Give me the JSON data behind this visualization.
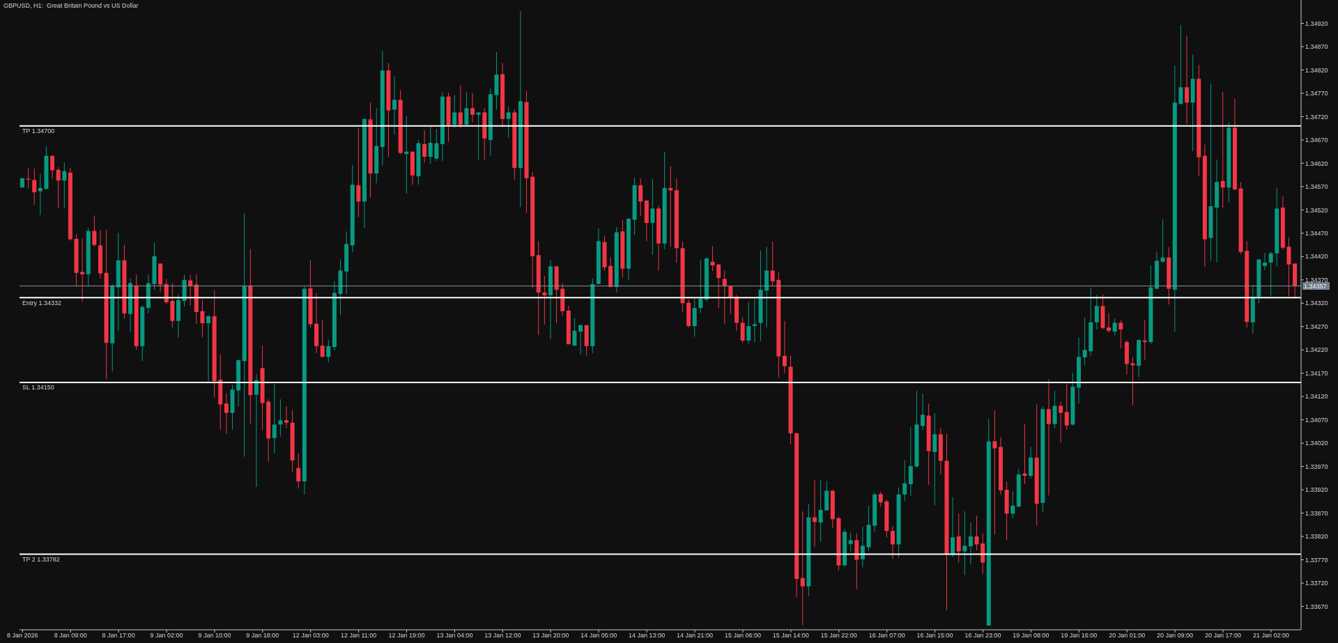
{
  "chart_data": {
    "type": "candlestick",
    "title": "GBPUSD, H1:  Great Britain Pound vs US Dollar",
    "categories": [
      "8 Jan 2026",
      null,
      null,
      null,
      null,
      null,
      null,
      null,
      "8 Jan 09:00",
      null,
      null,
      null,
      null,
      null,
      null,
      null,
      "8 Jan 17:00",
      null,
      null,
      null,
      null,
      null,
      null,
      null,
      "9 Jan 02:00",
      null,
      null,
      null,
      null,
      null,
      null,
      null,
      "9 Jan 10:00",
      null,
      null,
      null,
      null,
      null,
      null,
      null,
      "9 Jan 18:00",
      null,
      null,
      null,
      null,
      null,
      null,
      null,
      "12 Jan 03:00",
      null,
      null,
      null,
      null,
      null,
      null,
      null,
      "12 Jan 11:00",
      null,
      null,
      null,
      null,
      null,
      null,
      null,
      "12 Jan 19:00",
      null,
      null,
      null,
      null,
      null,
      null,
      null,
      "13 Jan 04:00",
      null,
      null,
      null,
      null,
      null,
      null,
      null,
      "13 Jan 12:00",
      null,
      null,
      null,
      null,
      null,
      null,
      null,
      "13 Jan 20:00",
      null,
      null,
      null,
      null,
      null,
      null,
      null,
      "14 Jan 05:00",
      null,
      null,
      null,
      null,
      null,
      null,
      null,
      "14 Jan 13:00",
      null,
      null,
      null,
      null,
      null,
      null,
      null,
      "14 Jan 21:00",
      null,
      null,
      null,
      null,
      null,
      null,
      null,
      "15 Jan 06:00",
      null,
      null,
      null,
      null,
      null,
      null,
      null,
      "15 Jan 14:00",
      null,
      null,
      null,
      null,
      null,
      null,
      null,
      "15 Jan 22:00",
      null,
      null,
      null,
      null,
      null,
      null,
      null,
      "16 Jan 07:00",
      null,
      null,
      null,
      null,
      null,
      null,
      null,
      "16 Jan 15:00",
      null,
      null,
      null,
      null,
      null,
      null,
      null,
      "16 Jan 23:00",
      null,
      null,
      null,
      null,
      null,
      null,
      null,
      "19 Jan 08:00",
      null,
      null,
      null,
      null,
      null,
      null,
      null,
      "19 Jan 16:00",
      null,
      null,
      null,
      null,
      null,
      null,
      null,
      "20 Jan 01:00",
      null,
      null,
      null,
      null,
      null,
      null,
      null,
      "20 Jan 09:00",
      null,
      null,
      null,
      null,
      null,
      null,
      null,
      "20 Jan 17:00",
      null,
      null,
      null,
      null,
      null,
      null,
      null,
      "21 Jan 02:00",
      null,
      null,
      null,
      null
    ],
    "ohlc": [
      [
        1.34568,
        1.34588,
        1.34568,
        1.34588
      ],
      [
        1.34587,
        1.34609,
        1.34566,
        1.34585
      ],
      [
        1.34584,
        1.34609,
        1.34531,
        1.34558
      ],
      [
        1.3456,
        1.34597,
        1.34509,
        1.34567
      ],
      [
        1.34565,
        1.34657,
        1.34564,
        1.34636
      ],
      [
        1.34636,
        1.34637,
        1.34587,
        1.34605
      ],
      [
        1.34606,
        1.34612,
        1.34524,
        1.34583
      ],
      [
        1.34583,
        1.34622,
        1.34524,
        1.34603
      ],
      [
        1.346,
        1.3461,
        1.34454,
        1.34457
      ],
      [
        1.34458,
        1.34468,
        1.34356,
        1.34385
      ],
      [
        1.34387,
        1.34459,
        1.34323,
        1.34382
      ],
      [
        1.34382,
        1.34481,
        1.34356,
        1.34475
      ],
      [
        1.34475,
        1.34508,
        1.34441,
        1.34445
      ],
      [
        1.34444,
        1.34477,
        1.34373,
        1.34384
      ],
      [
        1.34385,
        1.34477,
        1.34157,
        1.34235
      ],
      [
        1.34234,
        1.34361,
        1.34174,
        1.34357
      ],
      [
        1.34354,
        1.34471,
        1.34261,
        1.34412
      ],
      [
        1.34412,
        1.34445,
        1.34286,
        1.34298
      ],
      [
        1.34297,
        1.34373,
        1.34259,
        1.34363
      ],
      [
        1.34358,
        1.34381,
        1.3422,
        1.34228
      ],
      [
        1.34228,
        1.34315,
        1.34196,
        1.34312
      ],
      [
        1.3431,
        1.34381,
        1.34298,
        1.34363
      ],
      [
        1.34361,
        1.3445,
        1.34349,
        1.34421
      ],
      [
        1.34405,
        1.34405,
        1.34345,
        1.3436
      ],
      [
        1.34361,
        1.34372,
        1.34318,
        1.34322
      ],
      [
        1.34325,
        1.34363,
        1.34268,
        1.34282
      ],
      [
        1.34282,
        1.34339,
        1.34246,
        1.34327
      ],
      [
        1.34325,
        1.34381,
        1.34313,
        1.3437
      ],
      [
        1.34369,
        1.34381,
        1.34316,
        1.34357
      ],
      [
        1.3436,
        1.34382,
        1.34276,
        1.34301
      ],
      [
        1.34303,
        1.34327,
        1.34247,
        1.34277
      ],
      [
        1.34277,
        1.34295,
        1.34151,
        1.34292
      ],
      [
        1.34292,
        1.34348,
        1.34118,
        1.34153
      ],
      [
        1.34156,
        1.34211,
        1.34049,
        1.34103
      ],
      [
        1.34105,
        1.34127,
        1.3404,
        1.34085
      ],
      [
        1.34085,
        1.34145,
        1.34049,
        1.34135
      ],
      [
        1.34133,
        1.34198,
        1.34099,
        1.34198
      ],
      [
        1.34196,
        1.34513,
        1.33991,
        1.34356
      ],
      [
        1.34358,
        1.34436,
        1.34061,
        1.34123
      ],
      [
        1.34124,
        1.34168,
        1.33926,
        1.34155
      ],
      [
        1.34181,
        1.34229,
        1.34048,
        1.34106
      ],
      [
        1.34109,
        1.34114,
        1.3398,
        1.3403
      ],
      [
        1.34031,
        1.34147,
        1.33998,
        1.3406
      ],
      [
        1.3406,
        1.34114,
        1.34034,
        1.34069
      ],
      [
        1.34069,
        1.34099,
        1.34052,
        1.34064
      ],
      [
        1.34064,
        1.34091,
        1.33959,
        1.33983
      ],
      [
        1.33967,
        1.33998,
        1.33923,
        1.33938
      ],
      [
        1.33938,
        1.34355,
        1.3391,
        1.34351
      ],
      [
        1.34352,
        1.34412,
        1.34268,
        1.34275
      ],
      [
        1.34276,
        1.34342,
        1.34213,
        1.34228
      ],
      [
        1.34229,
        1.34283,
        1.34204,
        1.34205
      ],
      [
        1.34205,
        1.34241,
        1.34193,
        1.34228
      ],
      [
        1.34226,
        1.34366,
        1.34219,
        1.34342
      ],
      [
        1.3434,
        1.34414,
        1.34295,
        1.3439
      ],
      [
        1.34388,
        1.34474,
        1.3434,
        1.34447
      ],
      [
        1.34444,
        1.34616,
        1.34429,
        1.34574
      ],
      [
        1.34573,
        1.34696,
        1.34505,
        1.34538
      ],
      [
        1.34538,
        1.34715,
        1.34481,
        1.34715
      ],
      [
        1.34714,
        1.3475,
        1.34547,
        1.34598
      ],
      [
        1.34598,
        1.34738,
        1.34577,
        1.34657
      ],
      [
        1.34655,
        1.34861,
        1.34615,
        1.34819
      ],
      [
        1.34819,
        1.34835,
        1.34634,
        1.34733
      ],
      [
        1.34735,
        1.34807,
        1.34682,
        1.34756
      ],
      [
        1.34756,
        1.34777,
        1.34639,
        1.34642
      ],
      [
        1.3464,
        1.34721,
        1.34555,
        1.34645
      ],
      [
        1.34645,
        1.34645,
        1.34574,
        1.34594
      ],
      [
        1.34592,
        1.3467,
        1.34574,
        1.34663
      ],
      [
        1.34661,
        1.34691,
        1.34621,
        1.34634
      ],
      [
        1.34634,
        1.34699,
        1.34619,
        1.34664
      ],
      [
        1.3463,
        1.34693,
        1.34625,
        1.34663
      ],
      [
        1.34661,
        1.34771,
        1.34625,
        1.34763
      ],
      [
        1.34763,
        1.34772,
        1.34666,
        1.34702
      ],
      [
        1.34703,
        1.34766,
        1.34696,
        1.34729
      ],
      [
        1.34729,
        1.34787,
        1.34696,
        1.34703
      ],
      [
        1.34703,
        1.34772,
        1.34702,
        1.34738
      ],
      [
        1.34738,
        1.34771,
        1.34708,
        1.34724
      ],
      [
        1.34724,
        1.34729,
        1.34628,
        1.34729
      ],
      [
        1.34729,
        1.34738,
        1.34627,
        1.34673
      ],
      [
        1.3467,
        1.3478,
        1.34637,
        1.34768
      ],
      [
        1.34766,
        1.34858,
        1.34735,
        1.3481
      ],
      [
        1.34811,
        1.34835,
        1.34697,
        1.34715
      ],
      [
        1.34715,
        1.34741,
        1.34675,
        1.34729
      ],
      [
        1.34729,
        1.34736,
        1.34585,
        1.3461
      ],
      [
        1.3461,
        1.34946,
        1.34526,
        1.34753
      ],
      [
        1.34751,
        1.34775,
        1.34514,
        1.34588
      ],
      [
        1.34591,
        1.34601,
        1.34352,
        1.34421
      ],
      [
        1.34423,
        1.34453,
        1.34252,
        1.34343
      ],
      [
        1.34343,
        1.34379,
        1.34274,
        1.34337
      ],
      [
        1.34337,
        1.34412,
        1.34243,
        1.34399
      ],
      [
        1.34399,
        1.344,
        1.34277,
        1.34349
      ],
      [
        1.34351,
        1.34363,
        1.34294,
        1.34303
      ],
      [
        1.34304,
        1.34315,
        1.34232,
        1.34232
      ],
      [
        1.34229,
        1.34288,
        1.34229,
        1.34261
      ],
      [
        1.34259,
        1.34274,
        1.3421,
        1.34273
      ],
      [
        1.34273,
        1.34273,
        1.34208,
        1.34228
      ],
      [
        1.34228,
        1.34373,
        1.34213,
        1.34361
      ],
      [
        1.34361,
        1.3448,
        1.34361,
        1.34453
      ],
      [
        1.34451,
        1.34465,
        1.3439,
        1.34397
      ],
      [
        1.344,
        1.34418,
        1.34354,
        1.34355
      ],
      [
        1.34355,
        1.34483,
        1.34343,
        1.34472
      ],
      [
        1.34474,
        1.34499,
        1.34375,
        1.34394
      ],
      [
        1.34394,
        1.34502,
        1.3437,
        1.34501
      ],
      [
        1.34499,
        1.34589,
        1.34466,
        1.34573
      ],
      [
        1.34573,
        1.34588,
        1.34507,
        1.34538
      ],
      [
        1.3454,
        1.34541,
        1.34453,
        1.34492
      ],
      [
        1.34492,
        1.34586,
        1.34424,
        1.34523
      ],
      [
        1.34523,
        1.34529,
        1.3439,
        1.34448
      ],
      [
        1.34448,
        1.34645,
        1.34436,
        1.34567
      ],
      [
        1.34567,
        1.34614,
        1.34441,
        1.34562
      ],
      [
        1.34562,
        1.34588,
        1.34407,
        1.34438
      ],
      [
        1.34438,
        1.34452,
        1.34301,
        1.3432
      ],
      [
        1.34321,
        1.34328,
        1.34268,
        1.34271
      ],
      [
        1.34271,
        1.3433,
        1.34248,
        1.3431
      ],
      [
        1.3431,
        1.34412,
        1.34299,
        1.3433
      ],
      [
        1.34328,
        1.34418,
        1.34324,
        1.34416
      ],
      [
        1.34409,
        1.34442,
        1.34389,
        1.34401
      ],
      [
        1.34403,
        1.34404,
        1.34309,
        1.34374
      ],
      [
        1.34372,
        1.3439,
        1.34276,
        1.34356
      ],
      [
        1.34356,
        1.34356,
        1.34297,
        1.34333
      ],
      [
        1.34334,
        1.34338,
        1.3426,
        1.34278
      ],
      [
        1.34278,
        1.3429,
        1.34235,
        1.3424
      ],
      [
        1.3424,
        1.34323,
        1.34233,
        1.34271
      ],
      [
        1.34271,
        1.3433,
        1.34236,
        1.34275
      ],
      [
        1.34278,
        1.34433,
        1.34239,
        1.34349
      ],
      [
        1.34347,
        1.34441,
        1.34268,
        1.3439
      ],
      [
        1.3439,
        1.34452,
        1.34356,
        1.34367
      ],
      [
        1.3437,
        1.34387,
        1.34161,
        1.34206
      ],
      [
        1.34207,
        1.34282,
        1.3417,
        1.34185
      ],
      [
        1.34184,
        1.34208,
        1.34017,
        1.34041
      ],
      [
        1.34041,
        1.34043,
        1.33689,
        1.33729
      ],
      [
        1.33731,
        1.33874,
        1.3363,
        1.33713
      ],
      [
        1.33713,
        1.33889,
        1.33692,
        1.33861
      ],
      [
        1.33861,
        1.33941,
        1.33797,
        1.33851
      ],
      [
        1.3385,
        1.33941,
        1.33808,
        1.33877
      ],
      [
        1.33876,
        1.33939,
        1.33876,
        1.33918
      ],
      [
        1.33918,
        1.3392,
        1.33838,
        1.33857
      ],
      [
        1.33859,
        1.33863,
        1.33747,
        1.33758
      ],
      [
        1.33758,
        1.33836,
        1.33756,
        1.3383
      ],
      [
        1.33804,
        1.33828,
        1.33788,
        1.33812
      ],
      [
        1.33812,
        1.33827,
        1.33707,
        1.3377
      ],
      [
        1.33771,
        1.33841,
        1.33754,
        1.338
      ],
      [
        1.33797,
        1.33886,
        1.33789,
        1.33845
      ],
      [
        1.33843,
        1.33914,
        1.3383,
        1.3391
      ],
      [
        1.33911,
        1.33916,
        1.33883,
        1.33893
      ],
      [
        1.33895,
        1.33899,
        1.33818,
        1.33832
      ],
      [
        1.33832,
        1.33842,
        1.33772,
        1.33803
      ],
      [
        1.33803,
        1.33925,
        1.33775,
        1.3391
      ],
      [
        1.3391,
        1.33983,
        1.33896,
        1.33934
      ],
      [
        1.33932,
        1.34054,
        1.33907,
        1.33971
      ],
      [
        1.3397,
        1.34133,
        1.33968,
        1.3406
      ],
      [
        1.34057,
        1.34126,
        1.34048,
        1.34081
      ],
      [
        1.34079,
        1.34105,
        1.33931,
        1.34003
      ],
      [
        1.34001,
        1.34084,
        1.33887,
        1.34039
      ],
      [
        1.34039,
        1.34052,
        1.33953,
        1.33982
      ],
      [
        1.33982,
        1.3404,
        1.33662,
        1.33782
      ],
      [
        1.33782,
        1.33904,
        1.33776,
        1.33818
      ],
      [
        1.3382,
        1.33869,
        1.33764,
        1.33788
      ],
      [
        1.33788,
        1.33874,
        1.33737,
        1.338
      ],
      [
        1.33799,
        1.3385,
        1.3376,
        1.3382
      ],
      [
        1.3382,
        1.33865,
        1.3379,
        1.33803
      ],
      [
        1.33805,
        1.33827,
        1.3374,
        1.33764
      ],
      [
        1.33629,
        1.34072,
        1.33629,
        1.34024
      ],
      [
        1.34024,
        1.3409,
        1.33824,
        1.34009
      ],
      [
        1.34012,
        1.34033,
        1.3391,
        1.33919
      ],
      [
        1.3392,
        1.33937,
        1.33812,
        1.33869
      ],
      [
        1.33869,
        1.33917,
        1.33859,
        1.33886
      ],
      [
        1.33884,
        1.33965,
        1.33883,
        1.33953
      ],
      [
        1.33955,
        1.34061,
        1.33932,
        1.3395
      ],
      [
        1.3395,
        1.34012,
        1.33944,
        1.33989
      ],
      [
        1.33989,
        1.34103,
        1.33844,
        1.3389
      ],
      [
        1.33892,
        1.34099,
        1.33872,
        1.34093
      ],
      [
        1.34093,
        1.34157,
        1.33908,
        1.34061
      ],
      [
        1.34061,
        1.34132,
        1.34052,
        1.341
      ],
      [
        1.341,
        1.34109,
        1.34021,
        1.34085
      ],
      [
        1.34087,
        1.34148,
        1.34049,
        1.34058
      ],
      [
        1.3406,
        1.34171,
        1.34058,
        1.34141
      ],
      [
        1.34139,
        1.34246,
        1.34105,
        1.34205
      ],
      [
        1.34204,
        1.34289,
        1.34187,
        1.3422
      ],
      [
        1.34217,
        1.34354,
        1.34208,
        1.34279
      ],
      [
        1.34279,
        1.34338,
        1.34264,
        1.34314
      ],
      [
        1.34314,
        1.34339,
        1.34264,
        1.34267
      ],
      [
        1.34268,
        1.34299,
        1.34257,
        1.34261
      ],
      [
        1.34259,
        1.34287,
        1.34251,
        1.34278
      ],
      [
        1.34278,
        1.34284,
        1.34223,
        1.34264
      ],
      [
        1.34237,
        1.3424,
        1.34167,
        1.3419
      ],
      [
        1.34191,
        1.34205,
        1.34102,
        1.34187
      ],
      [
        1.34186,
        1.34243,
        1.34162,
        1.34241
      ],
      [
        1.3424,
        1.34284,
        1.34199,
        1.34237
      ],
      [
        1.34237,
        1.34401,
        1.34232,
        1.34354
      ],
      [
        1.34351,
        1.34431,
        1.34351,
        1.34411
      ],
      [
        1.34409,
        1.345,
        1.34407,
        1.34418
      ],
      [
        1.34418,
        1.3444,
        1.34317,
        1.34351
      ],
      [
        1.34349,
        1.34829,
        1.34259,
        1.3475
      ],
      [
        1.34747,
        1.34916,
        1.34747,
        1.34783
      ],
      [
        1.34783,
        1.34894,
        1.34704,
        1.3475
      ],
      [
        1.3475,
        1.34853,
        1.34646,
        1.34801
      ],
      [
        1.34801,
        1.34831,
        1.34592,
        1.34633
      ],
      [
        1.34636,
        1.3466,
        1.34398,
        1.34457
      ],
      [
        1.3446,
        1.34791,
        1.34411,
        1.34528
      ],
      [
        1.34525,
        1.34628,
        1.34408,
        1.3458
      ],
      [
        1.34582,
        1.34773,
        1.34525,
        1.34568
      ],
      [
        1.34568,
        1.34708,
        1.34536,
        1.34696
      ],
      [
        1.34696,
        1.34758,
        1.34562,
        1.34564
      ],
      [
        1.34566,
        1.34579,
        1.34425,
        1.3443
      ],
      [
        1.34432,
        1.34453,
        1.34268,
        1.3428
      ],
      [
        1.34279,
        1.34359,
        1.34255,
        1.34334
      ],
      [
        1.34334,
        1.34414,
        1.3432,
        1.34414
      ],
      [
        1.344,
        1.34428,
        1.34391,
        1.34407
      ],
      [
        1.34407,
        1.3443,
        1.34335,
        1.34427
      ],
      [
        1.34427,
        1.34568,
        1.34399,
        1.34523
      ],
      [
        1.34525,
        1.34549,
        1.34435,
        1.34439
      ],
      [
        1.34441,
        1.34461,
        1.34335,
        1.34403
      ],
      [
        1.34405,
        1.34405,
        1.34332,
        1.34357
      ]
    ],
    "colors": [
      "#089981",
      "#f23645",
      "#f23645",
      "#089981",
      "#089981",
      "#f23645",
      "#f23645",
      "#089981",
      "#f23645",
      "#f23645",
      "#f23645",
      "#089981",
      "#f23645",
      "#f23645",
      "#f23645",
      "#089981",
      "#089981",
      "#f23645",
      "#089981",
      "#f23645",
      "#089981",
      "#089981",
      "#089981",
      "#f23645",
      "#f23645",
      "#f23645",
      "#089981",
      "#089981",
      "#f23645",
      "#f23645",
      "#f23645",
      "#089981",
      "#f23645",
      "#f23645",
      "#f23645",
      "#089981",
      "#089981",
      "#089981",
      "#f23645",
      "#089981",
      "#f23645",
      "#f23645",
      "#089981",
      "#089981",
      "#f23645",
      "#f23645",
      "#f23645",
      "#089981",
      "#f23645",
      "#f23645",
      "#f23645",
      "#089981",
      "#089981",
      "#089981",
      "#089981",
      "#089981",
      "#f23645",
      "#089981",
      "#f23645",
      "#089981",
      "#089981",
      "#f23645",
      "#089981",
      "#f23645",
      "#089981",
      "#f23645",
      "#089981",
      "#f23645",
      "#089981",
      "#089981",
      "#089981",
      "#f23645",
      "#089981",
      "#f23645",
      "#089981",
      "#f23645",
      "#089981",
      "#f23645",
      "#089981",
      "#089981",
      "#f23645",
      "#089981",
      "#f23645",
      "#089981",
      "#f23645",
      "#f23645",
      "#f23645",
      "#f23645",
      "#089981",
      "#f23645",
      "#f23645",
      "#f23645",
      "#089981",
      "#089981",
      "#f23645",
      "#089981",
      "#089981",
      "#f23645",
      "#f23645",
      "#089981",
      "#f23645",
      "#089981",
      "#089981",
      "#f23645",
      "#f23645",
      "#089981",
      "#f23645",
      "#089981",
      "#f23645",
      "#f23645",
      "#f23645",
      "#f23645",
      "#089981",
      "#089981",
      "#089981",
      "#f23645",
      "#f23645",
      "#f23645",
      "#f23645",
      "#f23645",
      "#f23645",
      "#089981",
      "#089981",
      "#089981",
      "#089981",
      "#f23645",
      "#f23645",
      "#f23645",
      "#f23645",
      "#f23645",
      "#f23645",
      "#089981",
      "#f23645",
      "#089981",
      "#089981",
      "#f23645",
      "#f23645",
      "#089981",
      "#089981",
      "#f23645",
      "#089981",
      "#089981",
      "#089981",
      "#f23645",
      "#f23645",
      "#f23645",
      "#089981",
      "#089981",
      "#089981",
      "#089981",
      "#089981",
      "#f23645",
      "#089981",
      "#f23645",
      "#f23645",
      "#089981",
      "#f23645",
      "#089981",
      "#089981",
      "#f23645",
      "#f23645",
      "#089981",
      "#f23645",
      "#f23645",
      "#f23645",
      "#089981",
      "#089981",
      "#f23645",
      "#089981",
      "#f23645",
      "#089981",
      "#f23645",
      "#089981",
      "#f23645",
      "#f23645",
      "#089981",
      "#089981",
      "#089981",
      "#089981",
      "#089981",
      "#f23645",
      "#f23645",
      "#089981",
      "#f23645",
      "#f23645",
      "#f23645",
      "#089981",
      "#f23645",
      "#089981",
      "#089981",
      "#089981",
      "#f23645",
      "#089981",
      "#089981",
      "#f23645",
      "#089981",
      "#f23645",
      "#f23645",
      "#089981",
      "#089981",
      "#f23645",
      "#089981",
      "#f23645",
      "#f23645",
      "#f23645",
      "#089981",
      "#089981",
      "#089981",
      "#089981",
      "#089981",
      "#f23645",
      "#f23645",
      "#f23645"
    ],
    "ylim": [
      1.3362,
      1.3497
    ],
    "yticks": [
      {
        "value": 1.3367,
        "label": "1.33670"
      },
      {
        "value": 1.3372,
        "label": "1.33720"
      },
      {
        "value": 1.3377,
        "label": "1.33770"
      },
      {
        "value": 1.3382,
        "label": "1.33820"
      },
      {
        "value": 1.3387,
        "label": "1.33870"
      },
      {
        "value": 1.3392,
        "label": "1.33920"
      },
      {
        "value": 1.3397,
        "label": "1.33970"
      },
      {
        "value": 1.3402,
        "label": "1.34020"
      },
      {
        "value": 1.3407,
        "label": "1.34070"
      },
      {
        "value": 1.3412,
        "label": "1.34120"
      },
      {
        "value": 1.3417,
        "label": "1.34170"
      },
      {
        "value": 1.3422,
        "label": "1.34220"
      },
      {
        "value": 1.3427,
        "label": "1.34270"
      },
      {
        "value": 1.3432,
        "label": "1.34320"
      },
      {
        "value": 1.3437,
        "label": "1.34370"
      },
      {
        "value": 1.3442,
        "label": "1.34420"
      },
      {
        "value": 1.3447,
        "label": "1.34470"
      },
      {
        "value": 1.3452,
        "label": "1.34520"
      },
      {
        "value": 1.3457,
        "label": "1.34570"
      },
      {
        "value": 1.3462,
        "label": "1.34620"
      },
      {
        "value": 1.3467,
        "label": "1.34670"
      },
      {
        "value": 1.3472,
        "label": "1.34720"
      },
      {
        "value": 1.3477,
        "label": "1.34770"
      },
      {
        "value": 1.3482,
        "label": "1.34820"
      },
      {
        "value": 1.3487,
        "label": "1.34870"
      },
      {
        "value": 1.3492,
        "label": "1.34920"
      }
    ],
    "ref_lines": [
      {
        "axis": "y",
        "value": 1.347,
        "label": "TP 1.34700",
        "color": "#ffffff"
      },
      {
        "axis": "y",
        "value": 1.34357,
        "color": "#8a929c"
      },
      {
        "axis": "y",
        "value": 1.34332,
        "label": "Entry 1.34332",
        "color": "#ffffff"
      },
      {
        "axis": "y",
        "value": 1.3415,
        "label": "SL 1.34150",
        "color": "#ffffff"
      },
      {
        "axis": "y",
        "value": 1.33782,
        "label": "TP 2 1.33782",
        "color": "#ffffff"
      }
    ],
    "annotations": [
      "1.34357"
    ]
  }
}
